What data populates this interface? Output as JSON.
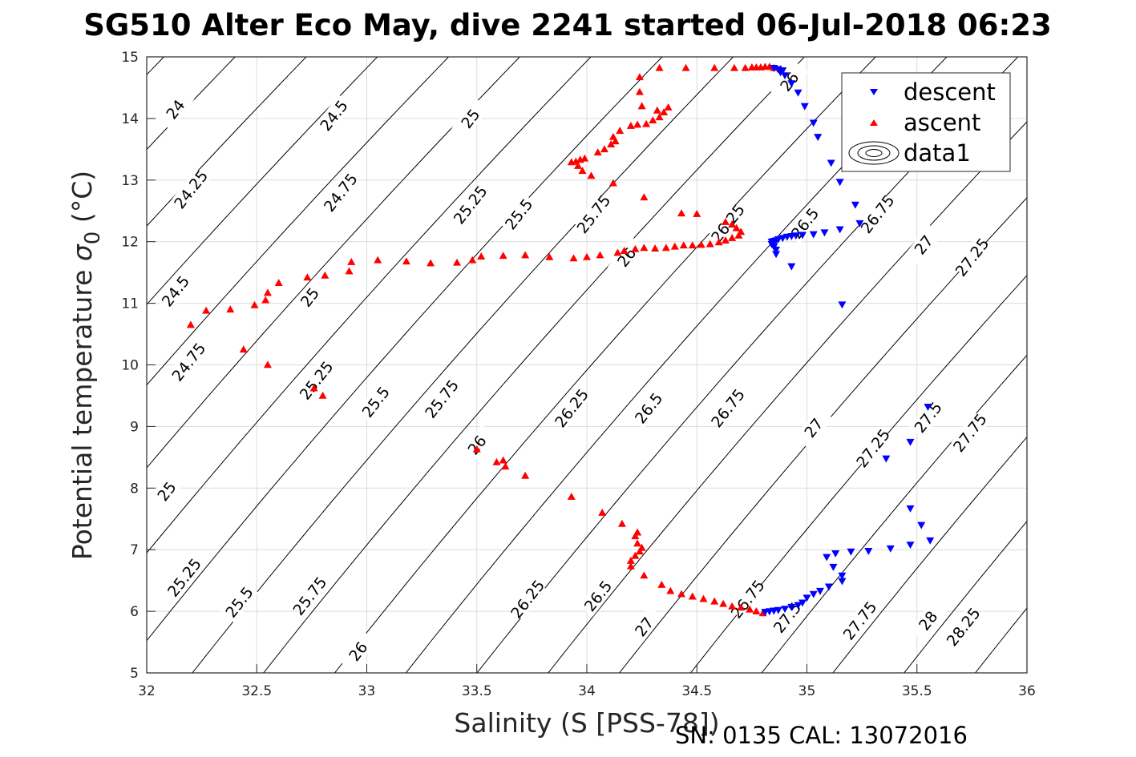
{
  "chart_data": {
    "type": "scatter",
    "title": "SG510 Alter Eco May, dive 2241 started 06-Jul-2018 06:23",
    "xlabel": "Salinity (S [PSS-78])",
    "ylabel": "Potential temperature σ0 (°C)",
    "ylabel_parts": {
      "main": "Potential temperature ",
      "sigma": "σ",
      "sub": "0",
      "unit": " (°C)"
    },
    "footer": "SN: 0135  CAL: 13072016",
    "xlim": [
      32,
      36
    ],
    "ylim": [
      5,
      15
    ],
    "xticks": [
      32,
      32.5,
      33,
      33.5,
      34,
      34.5,
      35,
      35.5,
      36
    ],
    "xtick_labels": [
      "32",
      "32.5",
      "33",
      "33.5",
      "34",
      "34.5",
      "35",
      "35.5",
      "36"
    ],
    "yticks": [
      5,
      6,
      7,
      8,
      9,
      10,
      11,
      12,
      13,
      14,
      15
    ],
    "ytick_labels": [
      "5",
      "6",
      "7",
      "8",
      "9",
      "10",
      "11",
      "12",
      "13",
      "14",
      "15"
    ],
    "grid": true,
    "legend": {
      "position": "top-right",
      "entries": [
        {
          "label": "descent",
          "marker": "triangle-down",
          "color": "#0000ff"
        },
        {
          "label": "ascent",
          "marker": "triangle-up",
          "color": "#ff0000"
        },
        {
          "label": "data1",
          "marker": "contour",
          "color": "#000000"
        }
      ]
    },
    "contour_levels": [
      24,
      24.25,
      24.5,
      24.75,
      25,
      25.25,
      25.5,
      25.75,
      26,
      26.25,
      26.5,
      26.75,
      27,
      27.25,
      27.5,
      27.75,
      28,
      28.25
    ],
    "contour_labels": [
      {
        "text": "24",
        "s": 32.13,
        "t": 14.15
      },
      {
        "text": "24.25",
        "s": 32.2,
        "t": 12.85
      },
      {
        "text": "24.5",
        "s": 32.85,
        "t": 14.05
      },
      {
        "text": "24.75",
        "s": 32.88,
        "t": 12.8
      },
      {
        "text": "25",
        "s": 33.47,
        "t": 14.0
      },
      {
        "text": "25.25",
        "s": 33.47,
        "t": 12.6
      },
      {
        "text": "25.5",
        "s": 33.69,
        "t": 12.45
      },
      {
        "text": "25.75",
        "s": 34.03,
        "t": 12.45
      },
      {
        "text": "26",
        "s": 34.92,
        "t": 14.6
      },
      {
        "text": "26.25",
        "s": 34.64,
        "t": 12.3
      },
      {
        "text": "26.5",
        "s": 34.99,
        "t": 12.3
      },
      {
        "text": "26.75",
        "s": 35.32,
        "t": 12.45
      },
      {
        "text": "27",
        "s": 35.53,
        "t": 11.95
      },
      {
        "text": "27.25",
        "s": 35.75,
        "t": 11.75
      },
      {
        "text": "24.5",
        "s": 32.13,
        "t": 11.2
      },
      {
        "text": "25",
        "s": 32.74,
        "t": 11.1
      },
      {
        "text": "26",
        "s": 34.18,
        "t": 11.75
      },
      {
        "text": "24.75",
        "s": 32.19,
        "t": 10.05
      },
      {
        "text": "25.25",
        "s": 32.77,
        "t": 9.75
      },
      {
        "text": "25.5",
        "s": 33.04,
        "t": 9.4
      },
      {
        "text": "25.75",
        "s": 33.34,
        "t": 9.45
      },
      {
        "text": "26.25",
        "s": 33.93,
        "t": 9.3
      },
      {
        "text": "26.5",
        "s": 34.28,
        "t": 9.3
      },
      {
        "text": "26.75",
        "s": 34.64,
        "t": 9.3
      },
      {
        "text": "27",
        "s": 35.03,
        "t": 8.98
      },
      {
        "text": "27.25",
        "s": 35.3,
        "t": 8.65
      },
      {
        "text": "27.5",
        "s": 35.55,
        "t": 9.15
      },
      {
        "text": "27.75",
        "s": 35.74,
        "t": 8.9
      },
      {
        "text": "26",
        "s": 33.5,
        "t": 8.7
      },
      {
        "text": "25",
        "s": 32.09,
        "t": 7.95
      },
      {
        "text": "25.25",
        "s": 32.17,
        "t": 6.55
      },
      {
        "text": "25.5",
        "s": 32.42,
        "t": 6.15
      },
      {
        "text": "25.75",
        "s": 32.74,
        "t": 6.25
      },
      {
        "text": "26",
        "s": 32.96,
        "t": 5.35
      },
      {
        "text": "26.25",
        "s": 33.73,
        "t": 6.2
      },
      {
        "text": "26.5",
        "s": 34.05,
        "t": 6.25
      },
      {
        "text": "26.75",
        "s": 34.73,
        "t": 6.2
      },
      {
        "text": "27",
        "s": 34.26,
        "t": 5.75
      },
      {
        "text": "27.5",
        "s": 34.91,
        "t": 5.9
      },
      {
        "text": "27.75",
        "s": 35.24,
        "t": 5.85
      },
      {
        "text": "28",
        "s": 35.55,
        "t": 5.85
      },
      {
        "text": "28.25",
        "s": 35.71,
        "t": 5.75
      }
    ],
    "series": [
      {
        "name": "descent",
        "marker": "triangle-down",
        "color": "#0000ff",
        "points": [
          [
            34.85,
            14.82
          ],
          [
            34.87,
            14.8
          ],
          [
            34.89,
            14.78
          ],
          [
            34.88,
            14.75
          ],
          [
            34.9,
            14.7
          ],
          [
            34.93,
            14.57
          ],
          [
            34.96,
            14.42
          ],
          [
            34.99,
            14.2
          ],
          [
            35.03,
            13.93
          ],
          [
            35.05,
            13.7
          ],
          [
            35.11,
            13.28
          ],
          [
            35.15,
            12.97
          ],
          [
            35.22,
            12.6
          ],
          [
            35.24,
            12.3
          ],
          [
            35.15,
            12.2
          ],
          [
            35.08,
            12.15
          ],
          [
            35.03,
            12.12
          ],
          [
            34.98,
            12.11
          ],
          [
            34.95,
            12.1
          ],
          [
            34.93,
            12.09
          ],
          [
            34.91,
            12.08
          ],
          [
            34.89,
            12.06
          ],
          [
            34.87,
            12.04
          ],
          [
            34.86,
            12.02
          ],
          [
            34.85,
            12.01
          ],
          [
            34.84,
            12.0
          ],
          [
            34.84,
            11.96
          ],
          [
            34.85,
            11.92
          ],
          [
            34.86,
            11.87
          ],
          [
            34.86,
            11.8
          ],
          [
            34.93,
            11.6
          ],
          [
            35.16,
            10.98
          ],
          [
            35.55,
            9.32
          ],
          [
            35.47,
            8.75
          ],
          [
            35.36,
            8.48
          ],
          [
            35.47,
            7.67
          ],
          [
            35.52,
            7.4
          ],
          [
            35.56,
            7.15
          ],
          [
            35.47,
            7.08
          ],
          [
            35.38,
            7.02
          ],
          [
            35.28,
            6.98
          ],
          [
            35.2,
            6.97
          ],
          [
            35.13,
            6.94
          ],
          [
            35.09,
            6.88
          ],
          [
            35.12,
            6.72
          ],
          [
            35.16,
            6.58
          ],
          [
            35.16,
            6.49
          ],
          [
            35.1,
            6.4
          ],
          [
            35.06,
            6.33
          ],
          [
            35.03,
            6.28
          ],
          [
            35.0,
            6.22
          ],
          [
            34.98,
            6.14
          ],
          [
            34.96,
            6.1
          ],
          [
            34.93,
            6.07
          ],
          [
            34.9,
            6.04
          ],
          [
            34.87,
            6.02
          ],
          [
            34.85,
            6.01
          ],
          [
            34.83,
            6.0
          ],
          [
            34.81,
            5.99
          ]
        ]
      },
      {
        "name": "ascent",
        "marker": "triangle-up",
        "color": "#ff0000",
        "points": [
          [
            34.8,
            5.97
          ],
          [
            34.77,
            6.0
          ],
          [
            34.74,
            6.03
          ],
          [
            34.7,
            6.06
          ],
          [
            34.66,
            6.08
          ],
          [
            34.62,
            6.12
          ],
          [
            34.58,
            6.16
          ],
          [
            34.53,
            6.2
          ],
          [
            34.48,
            6.24
          ],
          [
            34.43,
            6.28
          ],
          [
            34.38,
            6.33
          ],
          [
            34.34,
            6.43
          ],
          [
            34.26,
            6.58
          ],
          [
            34.2,
            6.73
          ],
          [
            34.2,
            6.82
          ],
          [
            34.22,
            6.9
          ],
          [
            34.24,
            6.97
          ],
          [
            34.25,
            7.03
          ],
          [
            34.23,
            7.1
          ],
          [
            34.22,
            7.22
          ],
          [
            34.23,
            7.28
          ],
          [
            34.16,
            7.42
          ],
          [
            34.07,
            7.6
          ],
          [
            33.93,
            7.86
          ],
          [
            33.72,
            8.2
          ],
          [
            33.63,
            8.35
          ],
          [
            33.62,
            8.45
          ],
          [
            33.59,
            8.42
          ],
          [
            33.5,
            8.63
          ],
          [
            32.8,
            9.5
          ],
          [
            32.76,
            9.62
          ],
          [
            32.55,
            10.0
          ],
          [
            32.44,
            10.25
          ],
          [
            32.2,
            10.65
          ],
          [
            32.27,
            10.88
          ],
          [
            32.38,
            10.9
          ],
          [
            32.49,
            10.97
          ],
          [
            32.54,
            11.05
          ],
          [
            32.55,
            11.17
          ],
          [
            32.6,
            11.33
          ],
          [
            32.73,
            11.42
          ],
          [
            32.81,
            11.45
          ],
          [
            32.92,
            11.52
          ],
          [
            32.93,
            11.67
          ],
          [
            33.05,
            11.7
          ],
          [
            33.18,
            11.68
          ],
          [
            33.29,
            11.65
          ],
          [
            33.41,
            11.66
          ],
          [
            33.48,
            11.7
          ],
          [
            33.52,
            11.76
          ],
          [
            33.62,
            11.77
          ],
          [
            33.72,
            11.78
          ],
          [
            33.83,
            11.75
          ],
          [
            33.94,
            11.73
          ],
          [
            34.0,
            11.75
          ],
          [
            34.06,
            11.78
          ],
          [
            34.14,
            11.82
          ],
          [
            34.17,
            11.85
          ],
          [
            34.22,
            11.88
          ],
          [
            34.26,
            11.9
          ],
          [
            34.31,
            11.89
          ],
          [
            34.36,
            11.9
          ],
          [
            34.4,
            11.92
          ],
          [
            34.44,
            11.94
          ],
          [
            34.48,
            11.94
          ],
          [
            34.52,
            11.95
          ],
          [
            34.56,
            11.96
          ],
          [
            34.6,
            11.99
          ],
          [
            34.63,
            12.02
          ],
          [
            34.66,
            12.06
          ],
          [
            34.69,
            12.1
          ],
          [
            34.7,
            12.16
          ],
          [
            34.68,
            12.22
          ],
          [
            34.66,
            12.28
          ],
          [
            34.63,
            12.32
          ],
          [
            34.5,
            12.45
          ],
          [
            34.43,
            12.46
          ],
          [
            34.26,
            12.72
          ],
          [
            34.12,
            12.95
          ],
          [
            34.02,
            13.07
          ],
          [
            33.98,
            13.15
          ],
          [
            33.96,
            13.23
          ],
          [
            33.95,
            13.3
          ],
          [
            33.93,
            13.29
          ],
          [
            33.97,
            13.33
          ],
          [
            33.99,
            13.35
          ],
          [
            34.05,
            13.45
          ],
          [
            34.08,
            13.5
          ],
          [
            34.11,
            13.58
          ],
          [
            34.13,
            13.63
          ],
          [
            34.12,
            13.7
          ],
          [
            34.15,
            13.8
          ],
          [
            34.2,
            13.88
          ],
          [
            34.23,
            13.9
          ],
          [
            34.27,
            13.91
          ],
          [
            34.3,
            13.97
          ],
          [
            34.33,
            14.02
          ],
          [
            34.35,
            14.1
          ],
          [
            34.37,
            14.18
          ],
          [
            34.32,
            14.13
          ],
          [
            34.25,
            14.2
          ],
          [
            34.24,
            14.43
          ],
          [
            34.24,
            14.67
          ],
          [
            34.33,
            14.82
          ],
          [
            34.45,
            14.82
          ],
          [
            34.58,
            14.82
          ],
          [
            34.67,
            14.82
          ],
          [
            34.72,
            14.82
          ],
          [
            34.75,
            14.83
          ],
          [
            34.77,
            14.83
          ],
          [
            34.79,
            14.83
          ],
          [
            34.81,
            14.84
          ],
          [
            34.83,
            14.84
          ],
          [
            34.85,
            14.82
          ],
          [
            34.88,
            14.8
          ]
        ]
      }
    ]
  }
}
